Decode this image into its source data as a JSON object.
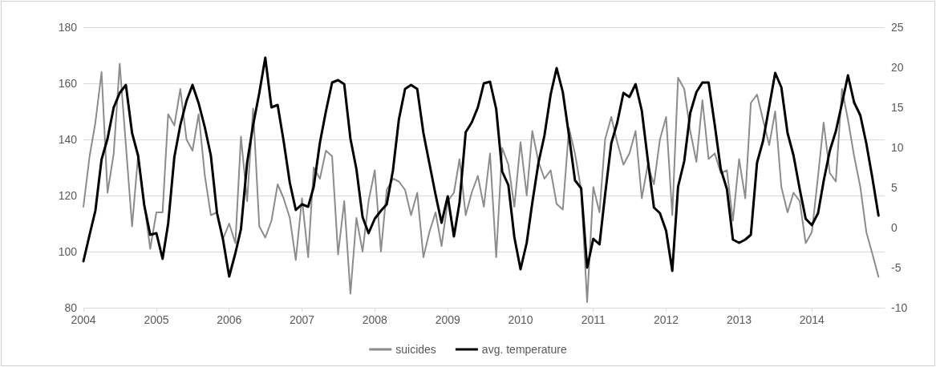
{
  "chart_data": {
    "type": "line",
    "x": [
      "2004-01",
      "2004-02",
      "2004-03",
      "2004-04",
      "2004-05",
      "2004-06",
      "2004-07",
      "2004-08",
      "2004-09",
      "2004-10",
      "2004-11",
      "2004-12",
      "2005-01",
      "2005-02",
      "2005-03",
      "2005-04",
      "2005-05",
      "2005-06",
      "2005-07",
      "2005-08",
      "2005-09",
      "2005-10",
      "2005-11",
      "2005-12",
      "2006-01",
      "2006-02",
      "2006-03",
      "2006-04",
      "2006-05",
      "2006-06",
      "2006-07",
      "2006-08",
      "2006-09",
      "2006-10",
      "2006-11",
      "2006-12",
      "2007-01",
      "2007-02",
      "2007-03",
      "2007-04",
      "2007-05",
      "2007-06",
      "2007-07",
      "2007-08",
      "2007-09",
      "2007-10",
      "2007-11",
      "2007-12",
      "2008-01",
      "2008-02",
      "2008-03",
      "2008-04",
      "2008-05",
      "2008-06",
      "2008-07",
      "2008-08",
      "2008-09",
      "2008-10",
      "2008-11",
      "2008-12",
      "2009-01",
      "2009-02",
      "2009-03",
      "2009-04",
      "2009-05",
      "2009-06",
      "2009-07",
      "2009-08",
      "2009-09",
      "2009-10",
      "2009-11",
      "2009-12",
      "2010-01",
      "2010-02",
      "2010-03",
      "2010-04",
      "2010-05",
      "2010-06",
      "2010-07",
      "2010-08",
      "2010-09",
      "2010-10",
      "2010-11",
      "2010-12",
      "2011-01",
      "2011-02",
      "2011-03",
      "2011-04",
      "2011-05",
      "2011-06",
      "2011-07",
      "2011-08",
      "2011-09",
      "2011-10",
      "2011-11",
      "2011-12",
      "2012-01",
      "2012-02",
      "2012-03",
      "2012-04",
      "2012-05",
      "2012-06",
      "2012-07",
      "2012-08",
      "2012-09",
      "2012-10",
      "2012-11",
      "2012-12",
      "2013-01",
      "2013-02",
      "2013-03",
      "2013-04",
      "2013-05",
      "2013-06",
      "2013-07",
      "2013-08",
      "2013-09",
      "2013-10",
      "2013-11",
      "2013-12",
      "2014-01",
      "2014-02",
      "2014-03",
      "2014-04",
      "2014-05",
      "2014-06",
      "2014-07",
      "2014-08",
      "2014-09",
      "2014-10",
      "2014-11",
      "2014-12"
    ],
    "series": [
      {
        "name": "suicides",
        "color": "#8c8c8c",
        "values": [
          116,
          134,
          146,
          164,
          121,
          135,
          167,
          138,
          109,
          134,
          117,
          101,
          114,
          114,
          149,
          145,
          158,
          140,
          136,
          149,
          127,
          113,
          114,
          104.5,
          110,
          103,
          141,
          118,
          151,
          109,
          105,
          111,
          124,
          119,
          112,
          97,
          119,
          98,
          130,
          126,
          136,
          134,
          99,
          118,
          85,
          112,
          100,
          118,
          129,
          100,
          122,
          126,
          125,
          122,
          113,
          121,
          98,
          107,
          114,
          102,
          118,
          121,
          133,
          113,
          121,
          127,
          116,
          135,
          98,
          137,
          131,
          116,
          139,
          120,
          143,
          132,
          126,
          129,
          117,
          115,
          144,
          135,
          122,
          82,
          123,
          114,
          140,
          148,
          139,
          131,
          135,
          143,
          119,
          131,
          124,
          140,
          148,
          113,
          162,
          158,
          143,
          132,
          154,
          133,
          135,
          128,
          129,
          111,
          133,
          119,
          153,
          156,
          147,
          138,
          150,
          123,
          114,
          121,
          118,
          103,
          107,
          127,
          146,
          128,
          125,
          158,
          147,
          134,
          123,
          107,
          99,
          91
        ]
      },
      {
        "name": "avg. temperature",
        "color": "#000000",
        "axis": "y2",
        "values": [
          -4.2,
          -0.9,
          2.1,
          8.5,
          11.1,
          15.0,
          16.8,
          17.8,
          11.8,
          9.0,
          2.8,
          -0.9,
          -0.7,
          -3.9,
          0.5,
          8.8,
          12.8,
          15.8,
          17.8,
          15.5,
          12.5,
          9.0,
          1.8,
          -1.5,
          -6.1,
          -3.2,
          -0.2,
          8.1,
          12.8,
          16.8,
          21.2,
          15.0,
          15.3,
          10.8,
          5.6,
          2.2,
          2.9,
          2.6,
          5.1,
          10.6,
          14.5,
          18.1,
          18.4,
          17.9,
          11.1,
          7.3,
          1.3,
          -0.7,
          1.1,
          2.1,
          2.9,
          7.1,
          13.5,
          17.3,
          17.8,
          17.3,
          11.8,
          8.0,
          4.1,
          0.6,
          3.9,
          -1.1,
          3.1,
          11.9,
          13.1,
          15.0,
          18.0,
          18.2,
          14.8,
          7.0,
          5.3,
          -1.2,
          -5.2,
          -1.9,
          3.1,
          8.1,
          11.5,
          16.6,
          19.9,
          16.9,
          11.5,
          5.9,
          4.9,
          -5.0,
          -1.4,
          -2.1,
          4.1,
          10.5,
          13.1,
          16.8,
          16.3,
          17.9,
          14.6,
          8.5,
          2.5,
          1.8,
          -0.4,
          -5.4,
          5.1,
          8.3,
          14.3,
          16.9,
          18.1,
          18.1,
          12.8,
          7.3,
          4.8,
          -1.5,
          -1.9,
          -1.5,
          -0.9,
          8.1,
          10.8,
          15.1,
          19.3,
          17.5,
          11.8,
          9.0,
          4.8,
          1.1,
          0.3,
          1.8,
          5.8,
          9.6,
          12.0,
          15.5,
          19.0,
          15.6,
          14.0,
          10.5,
          6.1,
          1.5
        ]
      }
    ],
    "xlim": [
      "2004-01",
      "2015-01"
    ],
    "xticks": [
      "2004",
      "2005",
      "2006",
      "2007",
      "2008",
      "2009",
      "2010",
      "2011",
      "2012",
      "2013",
      "2014"
    ],
    "ylim": [
      80,
      180
    ],
    "yticks": [
      80,
      100,
      120,
      140,
      160,
      180
    ],
    "y2lim": [
      -10,
      25
    ],
    "y2ticks": [
      -10,
      -5,
      0,
      5,
      10,
      15,
      20,
      25
    ],
    "grid": "y",
    "legend": "bottom",
    "marker": "none",
    "line_style": "solid"
  }
}
